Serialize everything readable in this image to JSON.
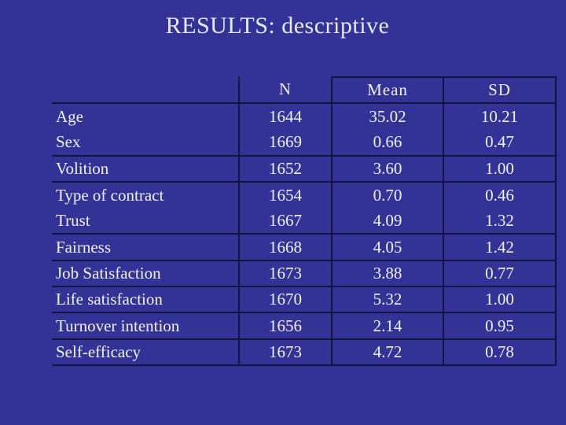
{
  "slide": {
    "title": "RESULTS: descriptive",
    "background_color": "#333397",
    "table_line_color": "#14143c",
    "text_color": "#f1f0e6",
    "title_color": "#e8e8f8"
  },
  "table": {
    "header": {
      "label": "",
      "n": "N",
      "mean": "Mean",
      "sd": "SD"
    },
    "rows": [
      {
        "label": "Age",
        "n": "1644",
        "mean": "35.02",
        "sd": "10.21"
      },
      {
        "label": "Sex",
        "n": "1669",
        "mean": "0.66",
        "sd": "0.47"
      },
      {
        "label": "Volition",
        "n": "1652",
        "mean": "3.60",
        "sd": "1.00"
      },
      {
        "label": "Type of contract",
        "n": "1654",
        "mean": "0.70",
        "sd": "0.46"
      },
      {
        "label": "Trust",
        "n": "1667",
        "mean": "4.09",
        "sd": "1.32"
      },
      {
        "label": "Fairness",
        "n": "1668",
        "mean": "4.05",
        "sd": "1.42"
      },
      {
        "label": "Job Satisfaction",
        "n": "1673",
        "mean": "3.88",
        "sd": "0.77"
      },
      {
        "label": "Life satisfaction",
        "n": "1670",
        "mean": "5.32",
        "sd": "1.00"
      },
      {
        "label": "Turnover intention",
        "n": "1656",
        "mean": "2.14",
        "sd": "0.95"
      },
      {
        "label": "Self-efficacy",
        "n": "1673",
        "mean": "4.72",
        "sd": "0.78"
      }
    ]
  }
}
